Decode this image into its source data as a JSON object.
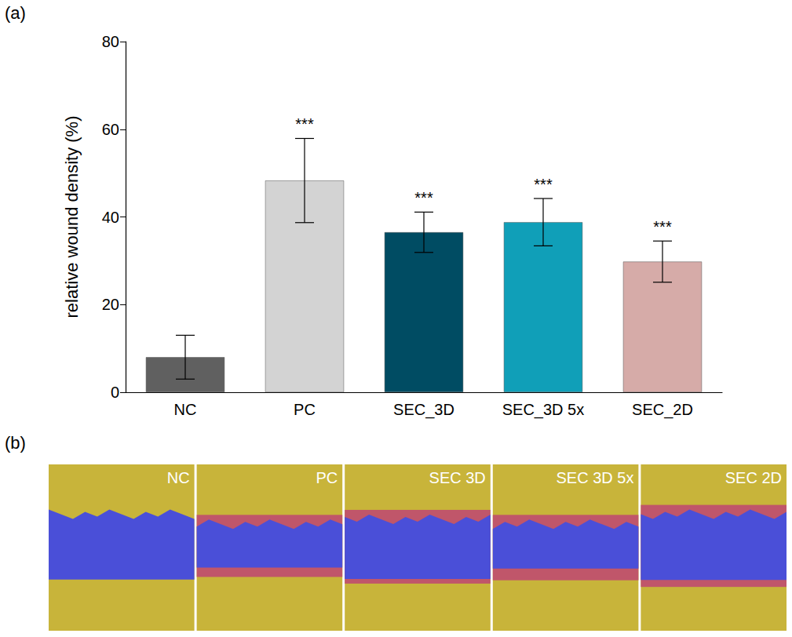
{
  "chart_data": {
    "type": "bar",
    "y_label": "relative wound density (%)",
    "categories": [
      "NC",
      "PC",
      "SEC_3D",
      "SEC_3D 5x",
      "SEC_2D"
    ],
    "values": [
      8,
      48.3,
      36.5,
      38.8,
      29.8
    ],
    "errors": [
      5,
      9.6,
      4.6,
      5.4,
      4.7
    ],
    "significance": [
      null,
      "***",
      "***",
      "***",
      "***"
    ],
    "colors": [
      "#606060",
      "#d3d3d3",
      "#004c63",
      "#109fb8",
      "#d6aba8"
    ],
    "ylim": [
      0,
      80
    ],
    "yticks": [
      0,
      20,
      40,
      60,
      80
    ],
    "grid": false
  },
  "panel_labels": [
    "(a)",
    "(b)"
  ],
  "images": {
    "labels": [
      "NC",
      "PC",
      "SEC 3D",
      "SEC 3D 5x",
      "SEC 2D"
    ]
  }
}
